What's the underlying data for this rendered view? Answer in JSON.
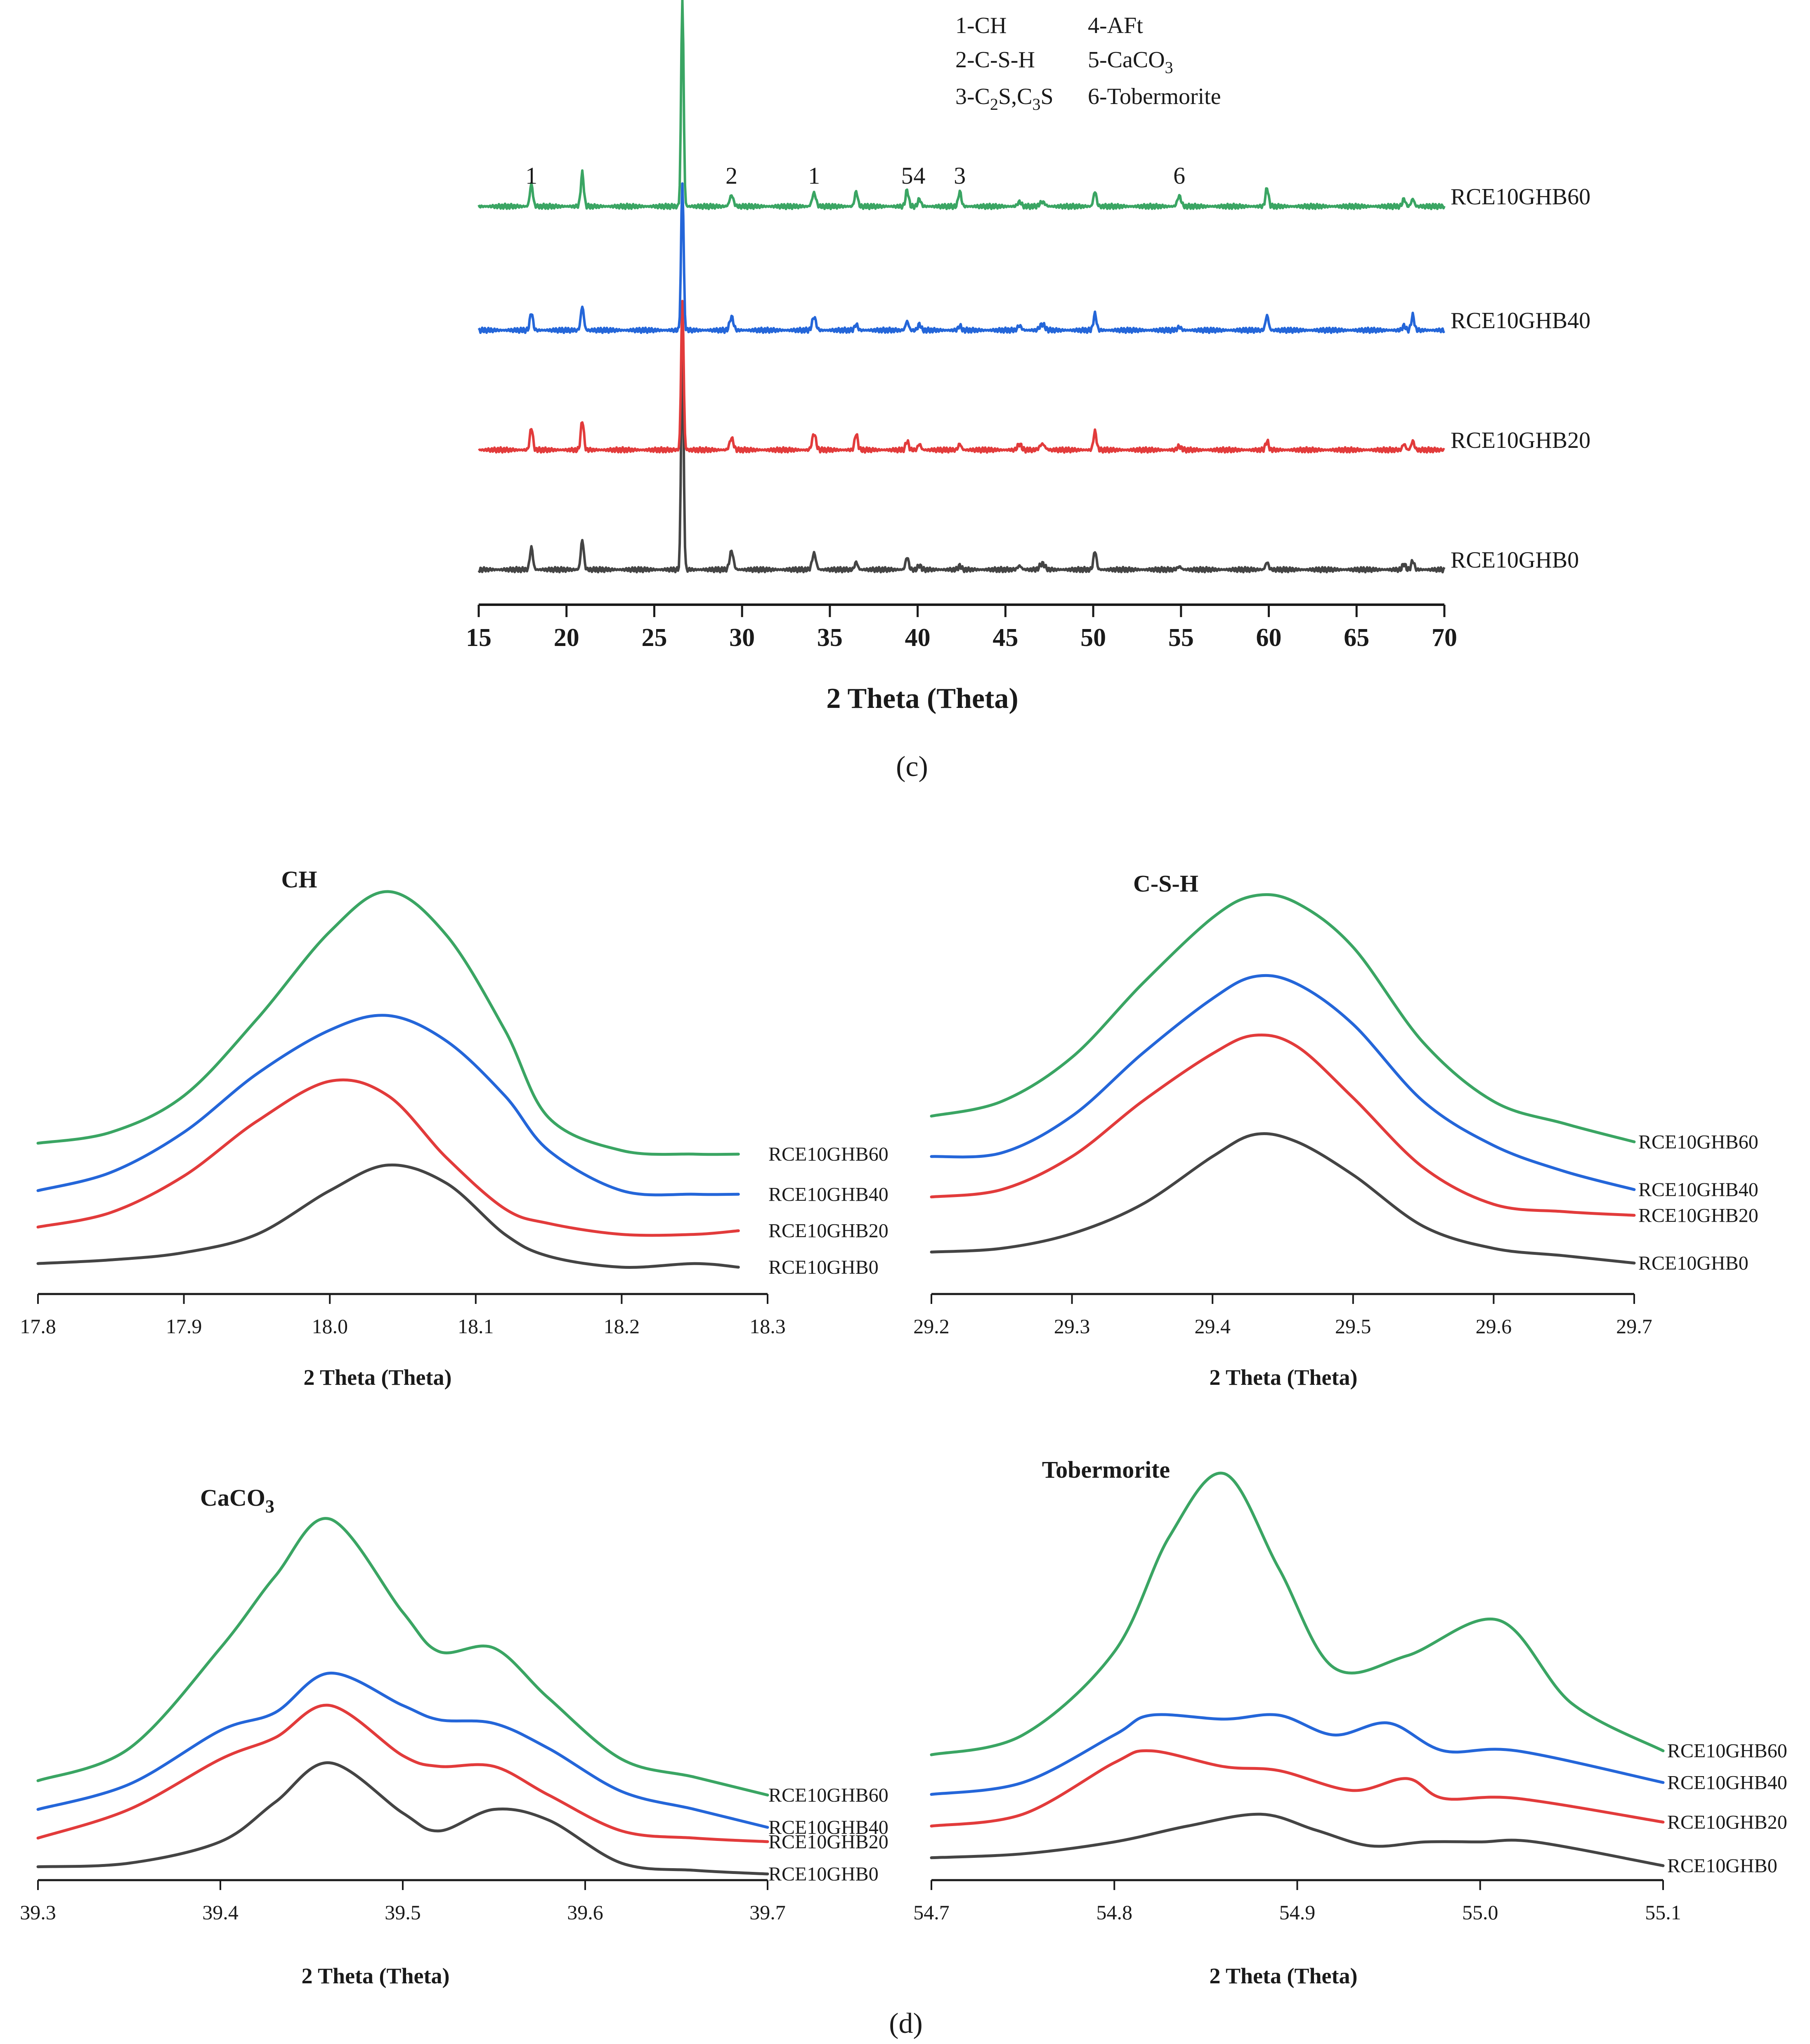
{
  "colors": {
    "RCE10GHB60": "#3aa563",
    "RCE10GHB40": "#2466d9",
    "RCE10GHB20": "#e23b3b",
    "RCE10GHB0": "#444444",
    "axis": "#1a1a1a"
  },
  "panel_c": {
    "label": "(c)"
  },
  "panel_d": {
    "label": "(d)"
  },
  "chart_data": [
    {
      "type": "line",
      "title": "",
      "xlabel": "2 Theta (Theta)",
      "ylabel": "",
      "xlim": [
        15,
        70
      ],
      "xticks": [
        15,
        20,
        25,
        30,
        35,
        40,
        45,
        50,
        55,
        60,
        65,
        70
      ],
      "xtick_labels": [
        "15",
        "20",
        "25",
        "30",
        "35",
        "40",
        "45",
        "50",
        "55",
        "60",
        "65",
        "70"
      ],
      "legend": [
        {
          "key": "1-CH"
        },
        {
          "key": "2-C-S-H"
        },
        {
          "key_parts": [
            "3-C",
            "2",
            "S,C",
            "3",
            "S"
          ]
        },
        {
          "key": "4-AFt"
        },
        {
          "key_parts": [
            "5-CaCO",
            "3"
          ]
        },
        {
          "key": "6-Tobermorite"
        }
      ],
      "peak_labels": [
        {
          "text": "1",
          "x": 18.0
        },
        {
          "text": "2",
          "x": 29.4
        },
        {
          "text": "1",
          "x": 34.1
        },
        {
          "text": "5",
          "x": 39.4
        },
        {
          "text": "4",
          "x": 40.1
        },
        {
          "text": "3",
          "x": 42.4
        },
        {
          "text": "6",
          "x": 54.9
        }
      ],
      "peaks": [
        {
          "x": 18.0,
          "w": 0.12,
          "h": [
            0.3,
            0.3,
            0.24,
            0.3
          ]
        },
        {
          "x": 20.9,
          "w": 0.12,
          "h": [
            0.4,
            0.4,
            0.32,
            0.45
          ]
        },
        {
          "x": 26.6,
          "w": 0.1,
          "h": [
            3.1,
            2.0,
            2.0,
            2.8
          ]
        },
        {
          "x": 29.4,
          "w": 0.15,
          "h": [
            0.25,
            0.16,
            0.18,
            0.15
          ]
        },
        {
          "x": 34.1,
          "w": 0.15,
          "h": [
            0.22,
            0.22,
            0.18,
            0.18
          ]
        },
        {
          "x": 36.5,
          "w": 0.12,
          "h": [
            0.1,
            0.22,
            0.08,
            0.2
          ]
        },
        {
          "x": 39.4,
          "w": 0.12,
          "h": [
            0.17,
            0.12,
            0.12,
            0.22
          ]
        },
        {
          "x": 40.1,
          "w": 0.12,
          "h": [
            0.06,
            0.08,
            0.08,
            0.1
          ]
        },
        {
          "x": 42.4,
          "w": 0.12,
          "h": [
            0.05,
            0.08,
            0.06,
            0.2
          ]
        },
        {
          "x": 45.8,
          "w": 0.15,
          "h": [
            0.05,
            0.08,
            0.06,
            0.06
          ]
        },
        {
          "x": 47.1,
          "w": 0.2,
          "h": [
            0.08,
            0.08,
            0.08,
            0.06
          ]
        },
        {
          "x": 50.1,
          "w": 0.12,
          "h": [
            0.25,
            0.25,
            0.22,
            0.2
          ]
        },
        {
          "x": 54.9,
          "w": 0.15,
          "h": [
            0.04,
            0.05,
            0.04,
            0.14
          ]
        },
        {
          "x": 59.9,
          "w": 0.12,
          "h": [
            0.1,
            0.12,
            0.2,
            0.25
          ]
        },
        {
          "x": 67.7,
          "w": 0.12,
          "h": [
            0.08,
            0.08,
            0.06,
            0.1
          ]
        },
        {
          "x": 68.2,
          "w": 0.12,
          "h": [
            0.12,
            0.12,
            0.2,
            0.1
          ]
        }
      ],
      "series": [
        {
          "name": "RCE10GHB0"
        },
        {
          "name": "RCE10GHB20"
        },
        {
          "name": "RCE10GHB40"
        },
        {
          "name": "RCE10GHB60"
        }
      ]
    },
    {
      "type": "line",
      "title": "CH",
      "xlabel": "2 Theta (Theta)",
      "xlim": [
        17.8,
        18.3
      ],
      "xticks": [
        "17.8",
        "17.9",
        "18.0",
        "18.1",
        "18.2",
        "18.3"
      ],
      "series": [
        {
          "name": "RCE10GHB60",
          "x": [
            17.8,
            17.85,
            17.9,
            17.95,
            18.0,
            18.04,
            18.08,
            18.12,
            18.15,
            18.2,
            18.25,
            18.28
          ],
          "y": [
            3.1,
            3.4,
            4.4,
            6.5,
            8.9,
            10.0,
            8.8,
            6.2,
            3.8,
            2.9,
            2.8,
            2.8
          ]
        },
        {
          "name": "RCE10GHB40",
          "x": [
            17.8,
            17.85,
            17.9,
            17.95,
            18.0,
            18.04,
            18.08,
            18.12,
            18.15,
            18.2,
            18.25,
            18.28
          ],
          "y": [
            1.8,
            2.3,
            3.4,
            5.0,
            6.2,
            6.6,
            5.9,
            4.4,
            2.9,
            1.8,
            1.7,
            1.7
          ]
        },
        {
          "name": "RCE10GHB20",
          "x": [
            17.8,
            17.85,
            17.9,
            17.95,
            18.0,
            18.04,
            18.08,
            18.12,
            18.15,
            18.2,
            18.25,
            18.28
          ],
          "y": [
            0.8,
            1.2,
            2.2,
            3.7,
            4.8,
            4.4,
            2.7,
            1.3,
            0.9,
            0.6,
            0.6,
            0.7
          ]
        },
        {
          "name": "RCE10GHB0",
          "x": [
            17.8,
            17.85,
            17.9,
            17.95,
            18.0,
            18.04,
            18.08,
            18.12,
            18.15,
            18.2,
            18.25,
            18.28
          ],
          "y": [
            -0.2,
            -0.1,
            0.1,
            0.6,
            1.8,
            2.5,
            2.0,
            0.6,
            0.0,
            -0.3,
            -0.2,
            -0.3
          ]
        }
      ]
    },
    {
      "type": "line",
      "title": "C-S-H",
      "xlabel": "2 Theta (Theta)",
      "xlim": [
        29.2,
        29.7
      ],
      "xticks": [
        "29.2",
        "29.3",
        "29.4",
        "29.5",
        "29.6",
        "29.7"
      ],
      "series": [
        {
          "name": "RCE10GHB60",
          "x": [
            29.2,
            29.25,
            29.3,
            29.35,
            29.4,
            29.43,
            29.46,
            29.5,
            29.55,
            29.6,
            29.65,
            29.7
          ],
          "y": [
            4.0,
            4.4,
            5.6,
            7.6,
            9.4,
            10.0,
            9.8,
            8.6,
            6.0,
            4.4,
            3.8,
            3.3
          ]
        },
        {
          "name": "RCE10GHB40",
          "x": [
            29.2,
            29.25,
            29.3,
            29.35,
            29.4,
            29.43,
            29.46,
            29.5,
            29.55,
            29.6,
            29.65,
            29.7
          ],
          "y": [
            2.9,
            3.0,
            4.0,
            5.7,
            7.2,
            7.8,
            7.6,
            6.5,
            4.4,
            3.2,
            2.5,
            2.0
          ]
        },
        {
          "name": "RCE10GHB20",
          "x": [
            29.2,
            29.25,
            29.3,
            29.35,
            29.4,
            29.43,
            29.46,
            29.5,
            29.55,
            29.6,
            29.65,
            29.7
          ],
          "y": [
            1.8,
            2.0,
            2.9,
            4.4,
            5.7,
            6.2,
            5.9,
            4.5,
            2.6,
            1.6,
            1.4,
            1.3
          ]
        },
        {
          "name": "RCE10GHB0",
          "x": [
            29.2,
            29.25,
            29.3,
            29.35,
            29.4,
            29.43,
            29.46,
            29.5,
            29.55,
            29.6,
            29.65,
            29.7
          ],
          "y": [
            0.3,
            0.4,
            0.8,
            1.6,
            2.9,
            3.5,
            3.3,
            2.4,
            1.0,
            0.4,
            0.2,
            0.0
          ]
        }
      ]
    },
    {
      "type": "line",
      "title_parts": [
        "CaCO",
        "3"
      ],
      "xlabel": "2 Theta (Theta)",
      "xlim": [
        39.3,
        39.7
      ],
      "xticks": [
        "39.3",
        "39.4",
        "39.5",
        "39.6",
        "39.7"
      ],
      "series": [
        {
          "name": "RCE10GHB60",
          "x": [
            39.3,
            39.35,
            39.4,
            39.43,
            39.46,
            39.5,
            39.52,
            39.55,
            39.58,
            39.62,
            39.66,
            39.7
          ],
          "y": [
            2.5,
            3.4,
            6.2,
            8.2,
            9.8,
            7.2,
            6.1,
            6.2,
            4.8,
            3.1,
            2.6,
            2.1
          ]
        },
        {
          "name": "RCE10GHB40",
          "x": [
            39.3,
            39.35,
            39.4,
            39.43,
            39.46,
            39.5,
            39.52,
            39.55,
            39.58,
            39.62,
            39.66,
            39.7
          ],
          "y": [
            1.7,
            2.4,
            3.9,
            4.4,
            5.5,
            4.6,
            4.2,
            4.1,
            3.4,
            2.2,
            1.7,
            1.2
          ]
        },
        {
          "name": "RCE10GHB20",
          "x": [
            39.3,
            39.35,
            39.4,
            39.43,
            39.46,
            39.5,
            39.52,
            39.55,
            39.58,
            39.62,
            39.66,
            39.7
          ],
          "y": [
            0.9,
            1.7,
            3.1,
            3.7,
            4.6,
            3.2,
            2.9,
            2.9,
            2.1,
            1.1,
            0.9,
            0.8
          ]
        },
        {
          "name": "RCE10GHB0",
          "x": [
            39.3,
            39.35,
            39.4,
            39.43,
            39.46,
            39.5,
            39.52,
            39.55,
            39.58,
            39.62,
            39.66,
            39.7
          ],
          "y": [
            0.1,
            0.2,
            0.8,
            1.9,
            3.0,
            1.6,
            1.1,
            1.7,
            1.4,
            0.2,
            0.0,
            -0.1
          ]
        }
      ]
    },
    {
      "type": "line",
      "title": "Tobermorite",
      "xlabel": "2 Theta (Theta)",
      "xlim": [
        54.7,
        55.1
      ],
      "xticks": [
        "54.7",
        "54.8",
        "54.9",
        "55.0",
        "55.1"
      ],
      "series": [
        {
          "name": "RCE10GHB60",
          "x": [
            54.7,
            54.75,
            54.8,
            54.83,
            54.86,
            54.89,
            54.92,
            54.96,
            55.01,
            55.05,
            55.1
          ],
          "y": [
            2.9,
            3.4,
            5.5,
            8.4,
            10.0,
            7.6,
            5.1,
            5.4,
            6.3,
            4.2,
            3.0
          ]
        },
        {
          "name": "RCE10GHB40",
          "x": [
            54.7,
            54.75,
            54.8,
            54.82,
            54.86,
            54.89,
            54.92,
            54.95,
            54.98,
            55.02,
            55.1
          ],
          "y": [
            1.9,
            2.2,
            3.4,
            3.9,
            3.8,
            3.9,
            3.4,
            3.7,
            3.0,
            3.0,
            2.2
          ]
        },
        {
          "name": "RCE10GHB20",
          "x": [
            54.7,
            54.75,
            54.8,
            54.82,
            54.86,
            54.89,
            54.93,
            54.96,
            54.98,
            55.02,
            55.1
          ],
          "y": [
            1.1,
            1.4,
            2.7,
            3.0,
            2.6,
            2.5,
            2.0,
            2.3,
            1.8,
            1.8,
            1.2
          ]
        },
        {
          "name": "RCE10GHB0",
          "x": [
            54.7,
            54.75,
            54.8,
            54.84,
            54.88,
            54.91,
            54.94,
            54.97,
            55.0,
            55.03,
            55.1
          ],
          "y": [
            0.3,
            0.4,
            0.7,
            1.1,
            1.4,
            1.0,
            0.6,
            0.7,
            0.7,
            0.7,
            0.1
          ]
        }
      ]
    }
  ]
}
